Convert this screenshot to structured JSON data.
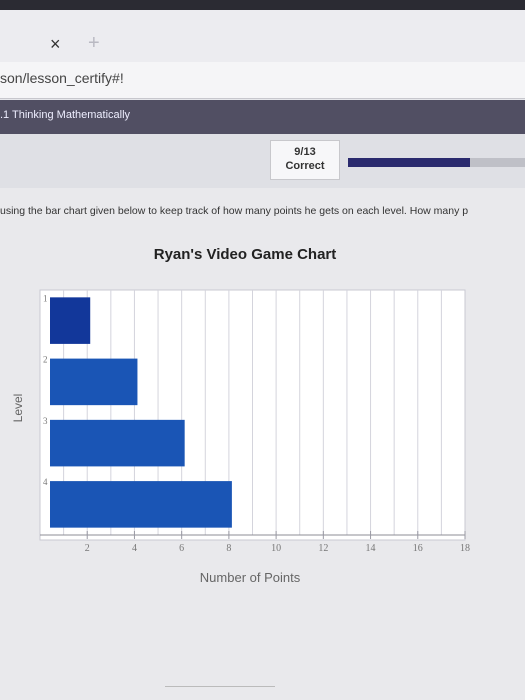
{
  "browser": {
    "tab_close": "×",
    "tab_new": "+",
    "url": "son/lesson_certify#!"
  },
  "course": {
    "title": ".1 Thinking Mathematically"
  },
  "status": {
    "score": "9/13",
    "result": "Correct",
    "progress_fraction": 0.69
  },
  "question": {
    "text": "using the bar chart given below to keep track of how many points he gets on each level. How many p"
  },
  "colors": {
    "bar": "#1a55b5",
    "bar_dark": "#12379a",
    "course_bar": "#514f63"
  },
  "chart_data": {
    "type": "bar",
    "orientation": "horizontal",
    "title": "Ryan's Video Game Chart",
    "xlabel": "Number of Points",
    "ylabel": "Level",
    "categories": [
      "1",
      "2",
      "3",
      "4"
    ],
    "values": [
      2,
      4,
      6,
      8
    ],
    "x_ticks": [
      "2",
      "4",
      "6",
      "8",
      "10",
      "12",
      "14",
      "16",
      "18"
    ],
    "xlim": [
      0,
      18
    ],
    "grid": true
  }
}
